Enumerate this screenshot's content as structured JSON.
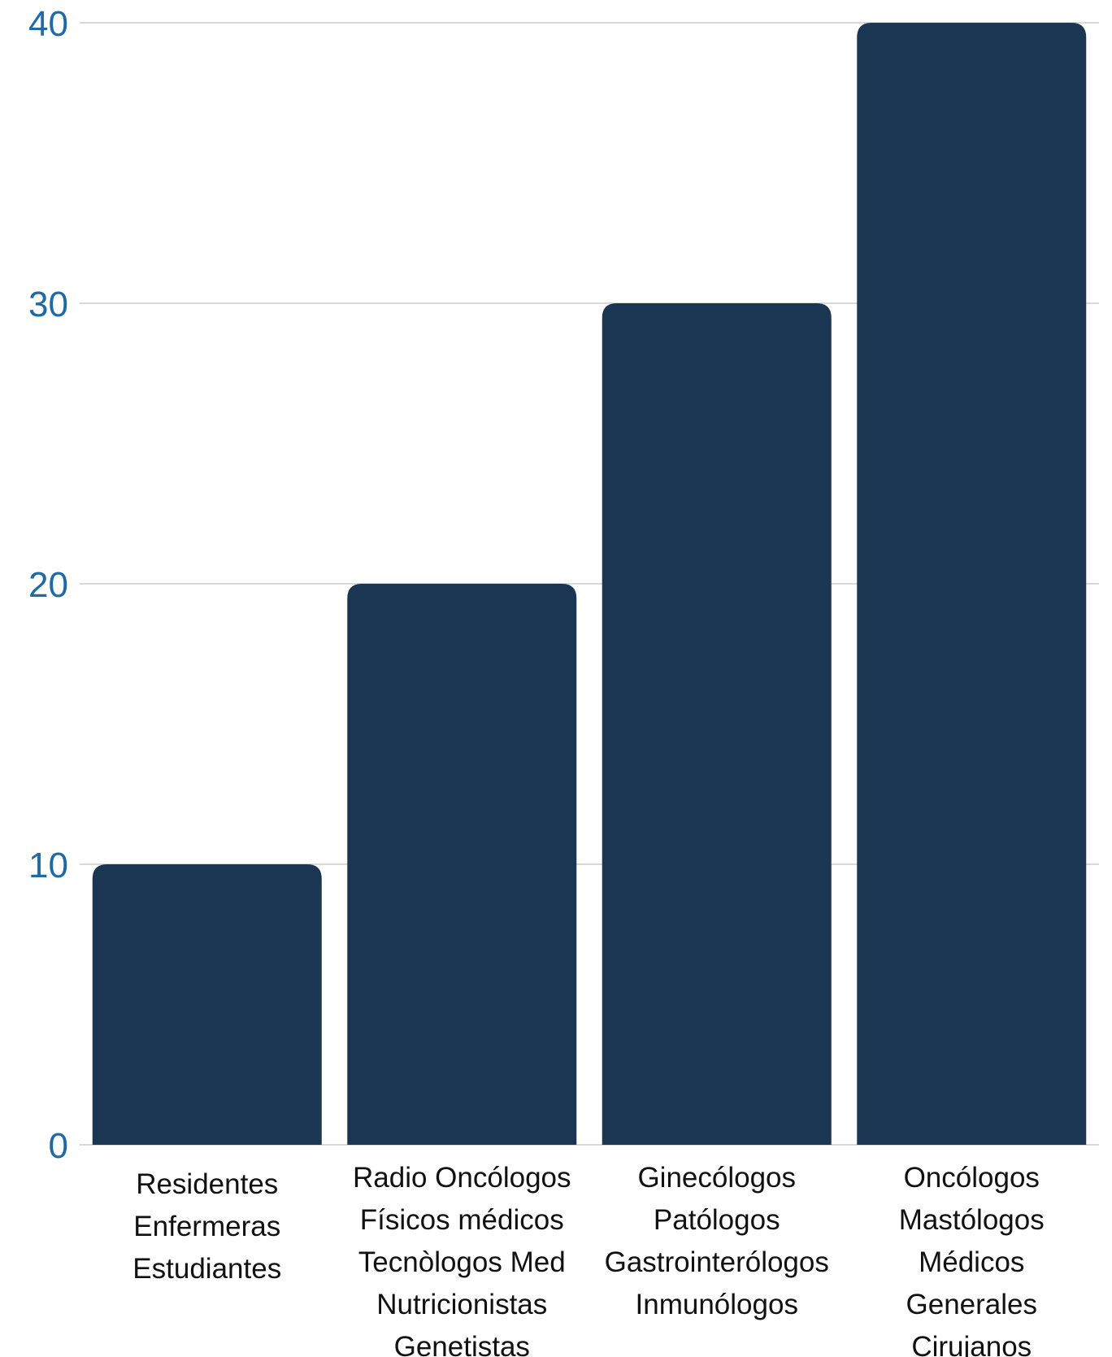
{
  "chart_data": {
    "type": "bar",
    "title": "",
    "xlabel": "",
    "ylabel": "",
    "ylim": [
      0,
      40
    ],
    "yticks": [
      "0",
      "10",
      "20",
      "30",
      "40"
    ],
    "grid": true,
    "categories": [
      [
        "Residentes",
        "Enfermeras",
        "Estudiantes"
      ],
      [
        "Radio Oncólogos",
        "Físicos médicos",
        "Tecnòlogos Med",
        "Nutricionistas",
        "Genetistas"
      ],
      [
        "Ginecólogos",
        "Patólogos",
        "Gastrointerólogos",
        "Inmunólogos"
      ],
      [
        "Oncólogos",
        "Mastólogos",
        "Médicos",
        "Generales",
        "Cirujanos"
      ]
    ],
    "values": [
      10,
      20,
      30,
      40
    ],
    "colors": {
      "bar": "#1b3652",
      "tick_text": "#1f6aa5",
      "grid": "#cccccc",
      "category_text": "#111111"
    }
  }
}
